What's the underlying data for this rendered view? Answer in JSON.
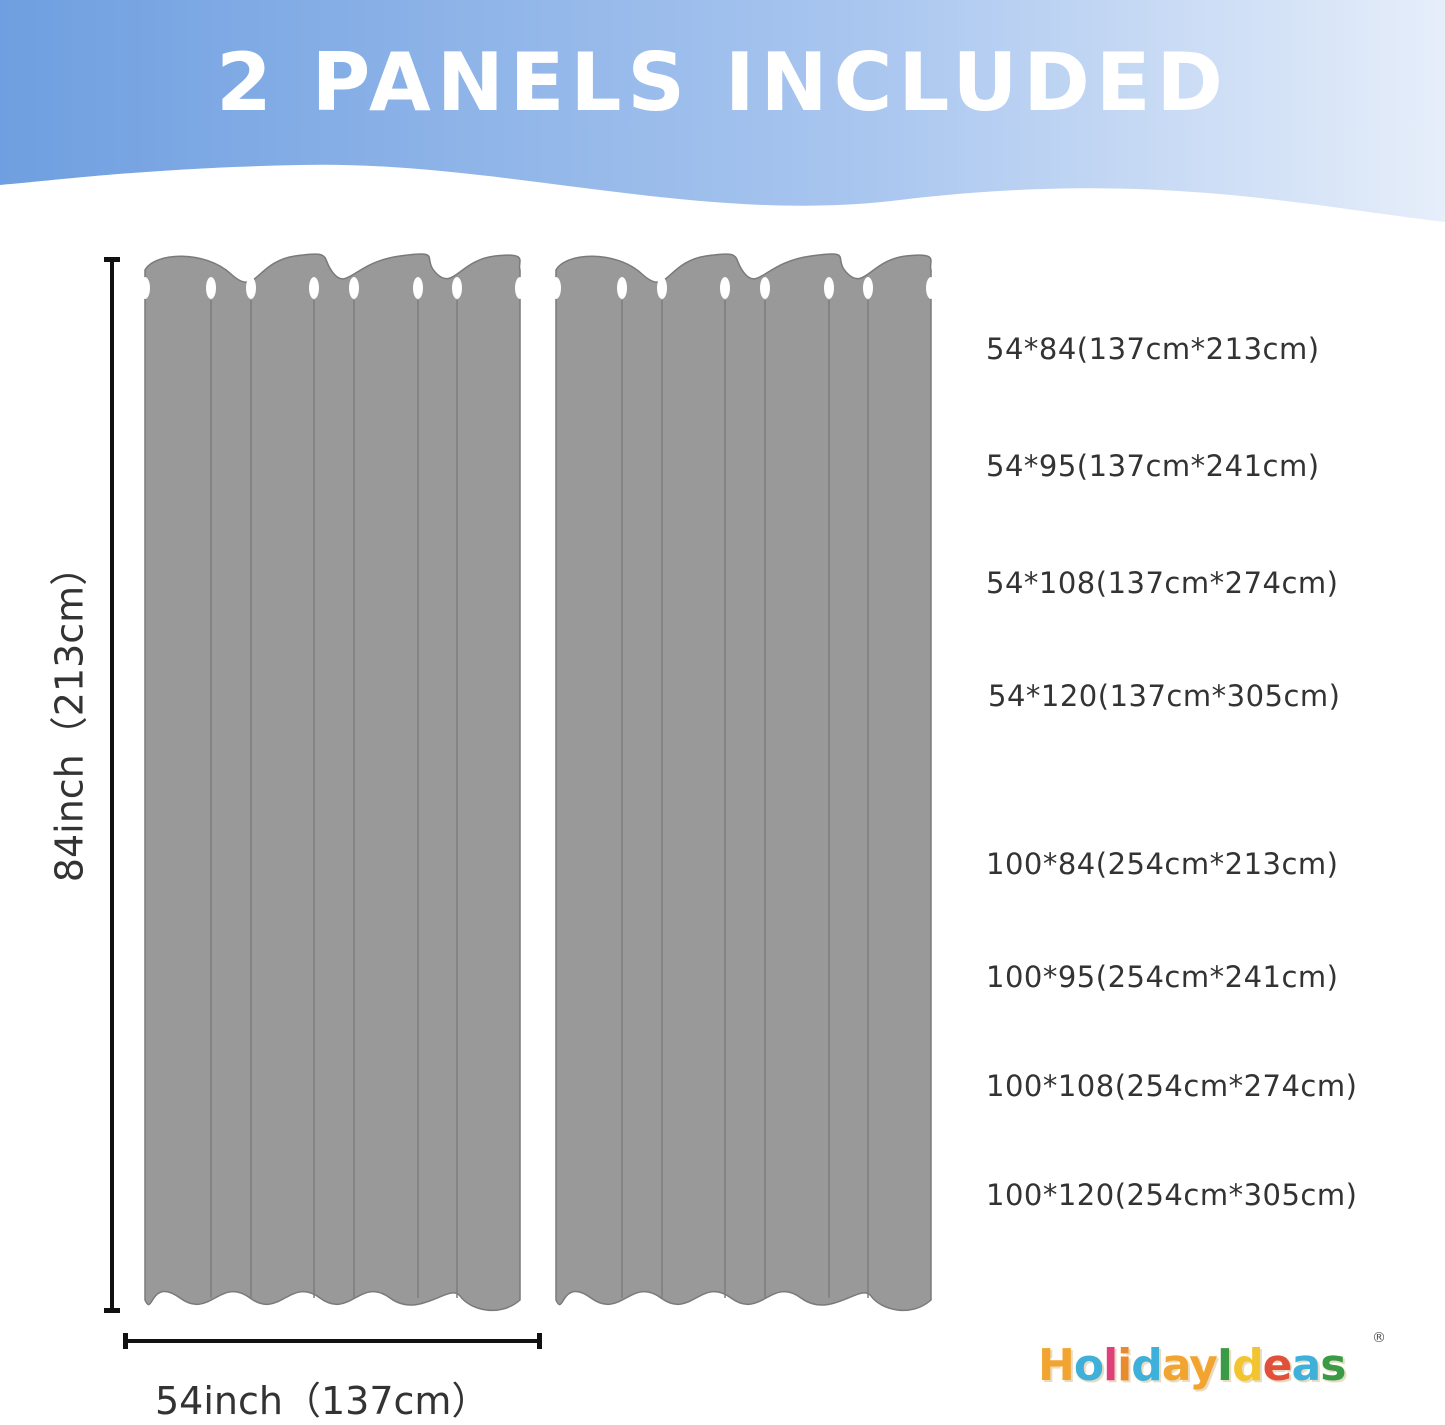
{
  "header": {
    "title": "2 PANELS INCLUDED",
    "gradient": [
      "#6f9fe0",
      "#e6eefa"
    ]
  },
  "curtain": {
    "color": "#999999",
    "panels": 2
  },
  "dimensions": {
    "height_label": "84inch（213cm）",
    "width_label": "54inch（137cm）"
  },
  "sizes": [
    "54*84(137cm*213cm)",
    "54*95(137cm*241cm)",
    "54*108(137cm*274cm)",
    "54*120(137cm*305cm)",
    "100*84(254cm*213cm)",
    "100*95(254cm*241cm)",
    "100*108(254cm*274cm)",
    "100*120(254cm*305cm)"
  ],
  "logo": {
    "text": "HolidayIdeas",
    "registered": "®",
    "letter_colors": [
      "#f2a431",
      "#3fb0da",
      "#e0407a",
      "#e88a2e",
      "#3fb0da",
      "#f2a431",
      "#f2a431",
      "#3a9a45",
      "#f2c530",
      "#e0503a",
      "#3fb0da",
      "#3a9a45"
    ]
  }
}
